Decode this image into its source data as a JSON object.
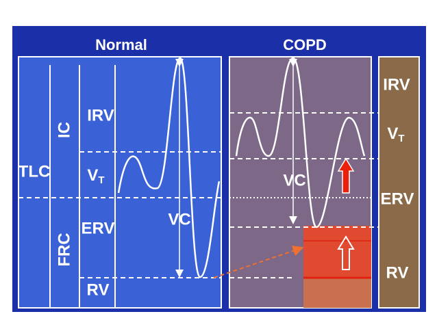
{
  "normal": {
    "title": "Normal",
    "labels": {
      "tlc": "TLC",
      "ic": "IC",
      "frc": "FRC",
      "irv": "IRV",
      "vt": {
        "main": "V",
        "sub": "T"
      },
      "erv": "ERV",
      "rv": "RV",
      "vc": "VC"
    }
  },
  "copd": {
    "title": "COPD",
    "vc": "VC",
    "scale": {
      "irv": "IRV",
      "vt": {
        "main": "V",
        "sub": "T"
      },
      "erv": "ERV",
      "rv": "RV"
    }
  }
}
